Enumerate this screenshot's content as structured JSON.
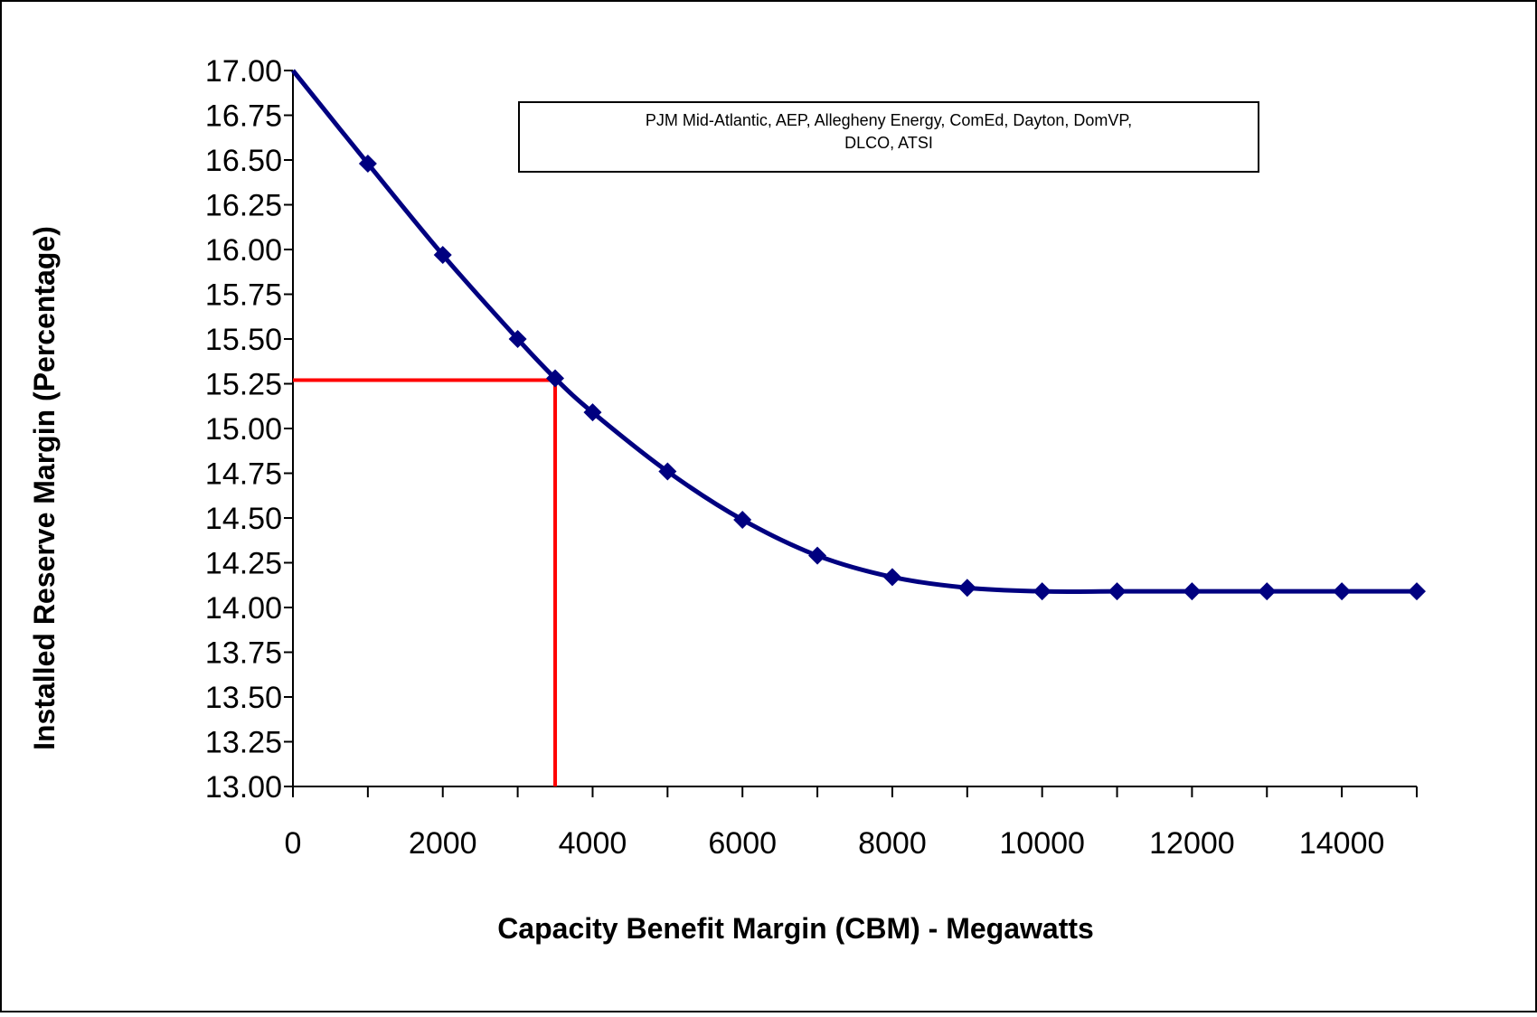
{
  "chart_data": {
    "type": "line",
    "title": "",
    "xlabel": "Capacity Benefit Margin (CBM) - Megawatts",
    "ylabel": "Installed Reserve Margin (Percentage)",
    "xlim": [
      0,
      15000
    ],
    "ylim": [
      13.0,
      17.0
    ],
    "x_ticks": [
      0,
      2000,
      4000,
      6000,
      8000,
      10000,
      12000,
      14000
    ],
    "x_tick_labels": [
      "0",
      "2000",
      "4000",
      "6000",
      "8000",
      "10000",
      "12000",
      "14000"
    ],
    "y_ticks": [
      13.0,
      13.25,
      13.5,
      13.75,
      14.0,
      14.25,
      14.5,
      14.75,
      15.0,
      15.25,
      15.5,
      15.75,
      16.0,
      16.25,
      16.5,
      16.75,
      17.0
    ],
    "y_tick_labels": [
      "13.00",
      "13.25",
      "13.50",
      "13.75",
      "14.00",
      "14.25",
      "14.50",
      "14.75",
      "15.00",
      "15.25",
      "15.50",
      "15.75",
      "16.00",
      "16.25",
      "16.50",
      "16.75",
      "17.00"
    ],
    "grid": false,
    "legend": "none",
    "series": [
      {
        "color": "#000080",
        "marker": "diamond",
        "smooth": true,
        "points": [
          {
            "x": 0,
            "y": 17.0
          },
          {
            "x": 1000,
            "y": 16.48
          },
          {
            "x": 2000,
            "y": 15.97
          },
          {
            "x": 3000,
            "y": 15.5
          },
          {
            "x": 3500,
            "y": 15.28
          },
          {
            "x": 4000,
            "y": 15.09
          },
          {
            "x": 5000,
            "y": 14.76
          },
          {
            "x": 6000,
            "y": 14.49
          },
          {
            "x": 7000,
            "y": 14.29
          },
          {
            "x": 8000,
            "y": 14.17
          },
          {
            "x": 9000,
            "y": 14.11
          },
          {
            "x": 10000,
            "y": 14.09
          },
          {
            "x": 11000,
            "y": 14.09
          },
          {
            "x": 12000,
            "y": 14.09
          },
          {
            "x": 13000,
            "y": 14.09
          },
          {
            "x": 14000,
            "y": 14.09
          },
          {
            "x": 15000,
            "y": 14.09
          }
        ]
      }
    ],
    "reference_lines": {
      "color": "#ff0000",
      "x": 3500,
      "y": 15.27
    },
    "annotation": {
      "lines": [
        "PJM Mid-Atlantic, AEP, Allegheny Energy, ComEd, Dayton, DomVP,",
        "DLCO, ATSI"
      ]
    },
    "colors": {
      "curve": "#000080",
      "reference": "#ff0000",
      "axis": "#000000",
      "background": "#ffffff"
    }
  }
}
